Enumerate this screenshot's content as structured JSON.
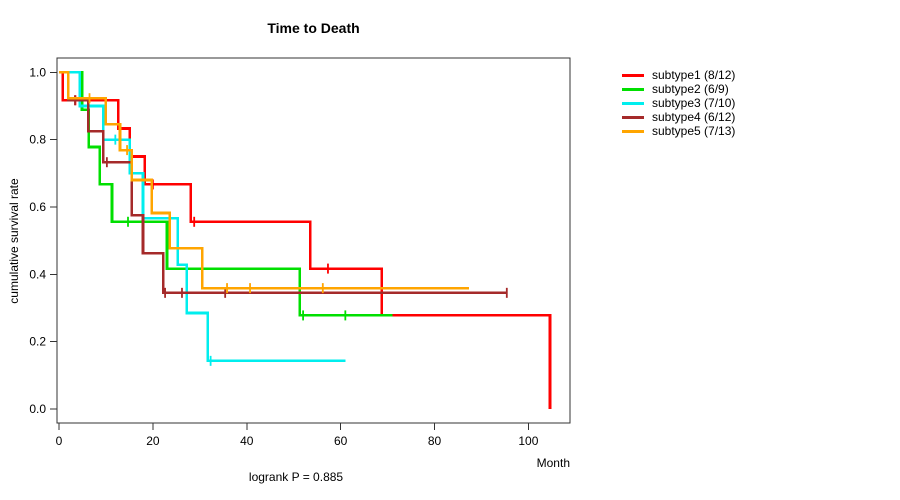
{
  "chart_data": {
    "type": "line",
    "variant": "kaplan-meier-step",
    "title": "Time to Death",
    "xlabel": "Month",
    "ylabel": "cumulative survival rate",
    "annotation": "logrank P = 0.885",
    "x_ticks": [
      0,
      20,
      40,
      60,
      80,
      100
    ],
    "y_ticks": [
      "1.0",
      "0.8",
      "0.6",
      "0.4",
      "0.2",
      "0.0"
    ],
    "y_tick_values": [
      1.0,
      0.8,
      0.6,
      0.4,
      0.2,
      0.0
    ],
    "xlim": [
      0,
      107
    ],
    "ylim": [
      0,
      1.04
    ],
    "grid": "off",
    "legend_position": "right-outside",
    "series": [
      {
        "name": "subtype1",
        "label": "subtype1 (8/12)",
        "color": "#FF0000",
        "steps": [
          [
            0.8,
            0.917
          ],
          [
            12.6,
            0.833
          ],
          [
            15.1,
            0.75
          ],
          [
            18.3,
            0.667
          ],
          [
            28.1,
            0.556
          ],
          [
            53.5,
            0.417
          ],
          [
            68.8,
            0.278
          ],
          [
            104.6,
            0.0
          ]
        ],
        "end": 104.6,
        "censors": [
          [
            3.5,
            0.917
          ],
          [
            20.0,
            0.667
          ],
          [
            28.8,
            0.556
          ],
          [
            57.3,
            0.417
          ]
        ]
      },
      {
        "name": "subtype2",
        "label": "subtype2 (6/9)",
        "color": "#00DF00",
        "steps": [
          [
            4.9,
            0.889
          ],
          [
            6.3,
            0.778
          ],
          [
            8.7,
            0.667
          ],
          [
            11.3,
            0.556
          ],
          [
            23.0,
            0.417
          ],
          [
            51.3,
            0.278
          ]
        ],
        "end": 71.0,
        "censors": [
          [
            14.7,
            0.556
          ],
          [
            52.0,
            0.278
          ],
          [
            61.0,
            0.278
          ]
        ]
      },
      {
        "name": "subtype3",
        "label": "subtype3 (7/10)",
        "color": "#00EEEE",
        "steps": [
          [
            4.4,
            0.9
          ],
          [
            9.4,
            0.8
          ],
          [
            15.1,
            0.7
          ],
          [
            17.9,
            0.567
          ],
          [
            25.3,
            0.428
          ],
          [
            27.2,
            0.285
          ],
          [
            31.7,
            0.143
          ]
        ],
        "end": 61.0,
        "censors": [
          [
            12.0,
            0.8
          ],
          [
            32.3,
            0.143
          ]
        ]
      },
      {
        "name": "subtype4",
        "label": "subtype4 (6/12)",
        "color": "#A52A2A",
        "steps": [
          [
            2.0,
            0.917
          ],
          [
            6.2,
            0.825
          ],
          [
            9.4,
            0.733
          ],
          [
            15.5,
            0.576
          ],
          [
            17.9,
            0.463
          ],
          [
            22.2,
            0.345
          ]
        ],
        "end": 95.4,
        "censors": [
          [
            3.4,
            0.917
          ],
          [
            10.2,
            0.733
          ],
          [
            22.6,
            0.345
          ],
          [
            26.2,
            0.345
          ],
          [
            35.4,
            0.345
          ],
          [
            95.4,
            0.345
          ]
        ]
      },
      {
        "name": "subtype5",
        "label": "subtype5 (7/13)",
        "color": "#FFA500",
        "steps": [
          [
            2.0,
            0.923
          ],
          [
            10.0,
            0.846
          ],
          [
            13.0,
            0.769
          ],
          [
            15.5,
            0.68
          ],
          [
            19.8,
            0.582
          ],
          [
            23.6,
            0.478
          ],
          [
            30.5,
            0.359
          ]
        ],
        "end": 87.3,
        "censors": [
          [
            6.5,
            0.923
          ],
          [
            14.5,
            0.769
          ],
          [
            35.8,
            0.359
          ],
          [
            40.7,
            0.359
          ],
          [
            56.2,
            0.359
          ]
        ]
      }
    ]
  }
}
